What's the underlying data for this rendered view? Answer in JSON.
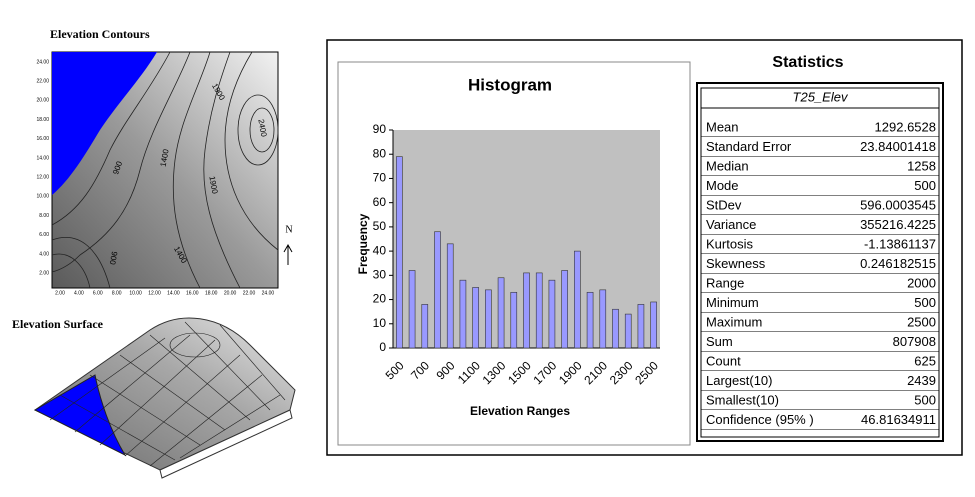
{
  "contour": {
    "title": "Elevation Contours",
    "xticks": [
      "2.00",
      "4.00",
      "6.00",
      "8.00",
      "10.00",
      "12.00",
      "14.00",
      "16.00",
      "18.00",
      "20.00",
      "22.00",
      "24.00"
    ],
    "yticks": [
      "24.00",
      "22.00",
      "20.00",
      "18.00",
      "16.00",
      "14.00",
      "12.00",
      "10.00",
      "8.00",
      "6.00",
      "4.00",
      "2.00"
    ],
    "contour_labels": [
      "1900",
      "2400",
      "1400",
      "900",
      "1900",
      "1400",
      "900"
    ],
    "north": "N"
  },
  "surface": {
    "title": "Elevation Surface"
  },
  "chart_data": {
    "type": "bar",
    "title": "Histogram",
    "x_label": "Elevation Ranges",
    "y_label": "Frequency",
    "categories": [
      500,
      null,
      700,
      null,
      900,
      null,
      1100,
      null,
      1300,
      null,
      1500,
      null,
      1700,
      null,
      1900,
      null,
      2100,
      null,
      2300,
      null,
      2500
    ],
    "values": [
      79,
      32,
      18,
      48,
      43,
      28,
      25,
      24,
      29,
      23,
      31,
      31,
      28,
      32,
      40,
      23,
      24,
      16,
      14,
      18,
      19
    ],
    "color": "#9999ff",
    "plot_background": "#c0c0c0",
    "ylim": [
      0,
      90
    ],
    "yticks": [
      0,
      10,
      20,
      30,
      40,
      50,
      60,
      70,
      80,
      90
    ],
    "grid": false
  },
  "statistics": {
    "title": "Statistics",
    "column": "T25_Elev",
    "rows": [
      [
        "Mean",
        "1292.6528"
      ],
      [
        "Standard Error",
        "23.84001418"
      ],
      [
        "Median",
        "1258"
      ],
      [
        "Mode",
        "500"
      ],
      [
        "StDev",
        "596.0003545"
      ],
      [
        "Variance",
        "355216.4225"
      ],
      [
        "Kurtosis",
        "-1.13861137"
      ],
      [
        "Skewness",
        "0.246182515"
      ],
      [
        "Range",
        "2000"
      ],
      [
        "Minimum",
        "500"
      ],
      [
        "Maximum",
        "2500"
      ],
      [
        "Sum",
        "807908"
      ],
      [
        "Count",
        "625"
      ],
      [
        "Largest(10)",
        "2439"
      ],
      [
        "Smallest(10)",
        "500"
      ],
      [
        "Confidence (95% )",
        "46.81634911"
      ]
    ]
  }
}
